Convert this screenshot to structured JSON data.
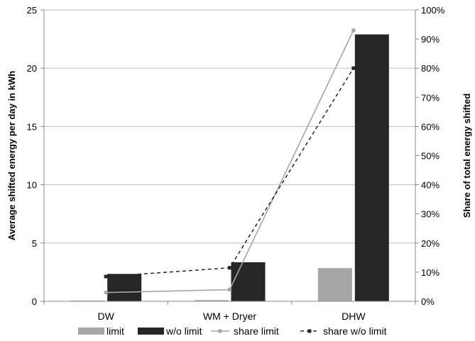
{
  "chart_data": {
    "type": "bar",
    "categories": [
      "DW",
      "WM + Dryer",
      "DHW"
    ],
    "series": [
      {
        "name": "limit",
        "kind": "bar",
        "axis": "left",
        "color": "#a6a6a6",
        "values": [
          0.05,
          0.1,
          2.85
        ]
      },
      {
        "name": "w/o limit",
        "kind": "bar",
        "axis": "left",
        "color": "#262626",
        "values": [
          2.35,
          3.35,
          22.9
        ]
      },
      {
        "name": "share limit",
        "kind": "line",
        "axis": "right",
        "color": "#a6a6a6",
        "dashed": false,
        "marker": "square",
        "values": [
          0.03,
          0.04,
          0.93
        ]
      },
      {
        "name": "share w/o limit",
        "kind": "line",
        "axis": "right",
        "color": "#262626",
        "dashed": true,
        "marker": "square",
        "values": [
          0.085,
          0.115,
          0.8
        ]
      }
    ],
    "ylabel": "Average shifted energy per day in kWh",
    "y2label": "Share of total energy shifted",
    "ylim": [
      0,
      25
    ],
    "y2lim": [
      0,
      1
    ],
    "yticks": [
      "0",
      "5",
      "10",
      "15",
      "20",
      "25"
    ],
    "y2ticks": [
      "0%",
      "10%",
      "20%",
      "30%",
      "40%",
      "50%",
      "60%",
      "70%",
      "80%",
      "90%",
      "100%"
    ],
    "grid": true,
    "legend_position": "bottom"
  }
}
